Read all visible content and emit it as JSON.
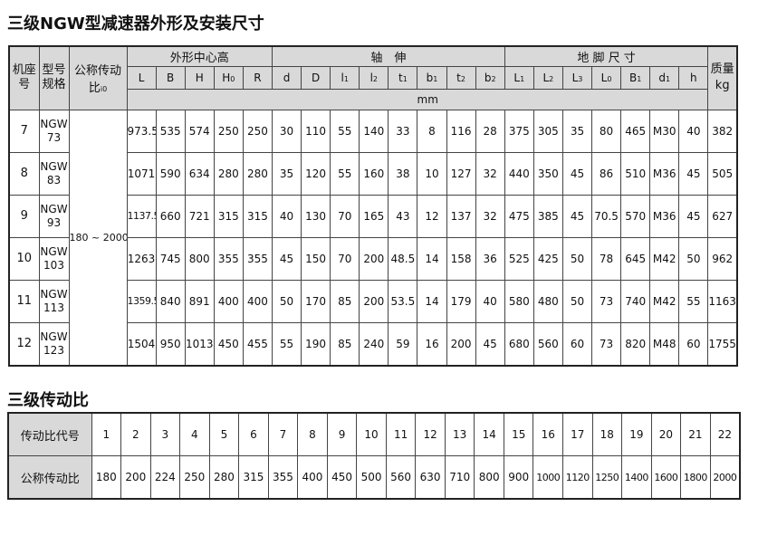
{
  "title": "三级NGW型减速器外形及安装尺寸",
  "table": {
    "h_seat": "机座号",
    "h_model": "型号规格",
    "h_ratio": "公称传动比",
    "h_ratio_sub": "i0",
    "group_outline": "外形中心高",
    "group_shaft": "轴　伸",
    "group_foot": "地 脚 尺 寸",
    "h_mass": "质量",
    "h_mass_unit": "kg",
    "unit": "mm",
    "cols": [
      "L",
      "B",
      "H",
      "H0",
      "R",
      "d",
      "D",
      "l1",
      "l2",
      "t1",
      "b1",
      "t2",
      "b2",
      "L1",
      "L2",
      "L3",
      "L0",
      "B1",
      "d1",
      "h"
    ],
    "ratio_range": "180 ~ 2000",
    "rows": [
      {
        "seat": "7",
        "model": "NGW 73",
        "v": [
          "973.5",
          "535",
          "574",
          "250",
          "250",
          "30",
          "110",
          "55",
          "140",
          "33",
          "8",
          "116",
          "28",
          "375",
          "305",
          "35",
          "80",
          "465",
          "M30",
          "40"
        ],
        "mass": "382"
      },
      {
        "seat": "8",
        "model": "NGW 83",
        "v": [
          "1071",
          "590",
          "634",
          "280",
          "280",
          "35",
          "120",
          "55",
          "160",
          "38",
          "10",
          "127",
          "32",
          "440",
          "350",
          "45",
          "86",
          "510",
          "M36",
          "45"
        ],
        "mass": "505"
      },
      {
        "seat": "9",
        "model": "NGW 93",
        "v": [
          "1137.5",
          "660",
          "721",
          "315",
          "315",
          "40",
          "130",
          "70",
          "165",
          "43",
          "12",
          "137",
          "32",
          "475",
          "385",
          "45",
          "70.5",
          "570",
          "M36",
          "45"
        ],
        "mass": "627"
      },
      {
        "seat": "10",
        "model": "NGW 103",
        "v": [
          "1263",
          "745",
          "800",
          "355",
          "355",
          "45",
          "150",
          "70",
          "200",
          "48.5",
          "14",
          "158",
          "36",
          "525",
          "425",
          "50",
          "78",
          "645",
          "M42",
          "50"
        ],
        "mass": "962"
      },
      {
        "seat": "11",
        "model": "NGW 113",
        "v": [
          "1359.5",
          "840",
          "891",
          "400",
          "400",
          "50",
          "170",
          "85",
          "200",
          "53.5",
          "14",
          "179",
          "40",
          "580",
          "480",
          "50",
          "73",
          "740",
          "M42",
          "55"
        ],
        "mass": "1163"
      },
      {
        "seat": "12",
        "model": "NGW 123",
        "v": [
          "1504",
          "950",
          "1013",
          "450",
          "455",
          "55",
          "190",
          "85",
          "240",
          "59",
          "16",
          "200",
          "45",
          "680",
          "560",
          "60",
          "73",
          "820",
          "M48",
          "60"
        ],
        "mass": "1755"
      }
    ]
  },
  "ratio_title": "三级传动比",
  "ratio_table": {
    "code_label": "传动比代号",
    "ratio_label": "公称传动比",
    "codes": [
      "1",
      "2",
      "3",
      "4",
      "5",
      "6",
      "7",
      "8",
      "9",
      "10",
      "11",
      "12",
      "13",
      "14",
      "15",
      "16",
      "17",
      "18",
      "19",
      "20",
      "21",
      "22"
    ],
    "ratios": [
      "180",
      "200",
      "224",
      "250",
      "280",
      "315",
      "355",
      "400",
      "450",
      "500",
      "560",
      "630",
      "710",
      "800",
      "900",
      "1000",
      "1120",
      "1250",
      "1400",
      "1600",
      "1800",
      "2000"
    ]
  }
}
